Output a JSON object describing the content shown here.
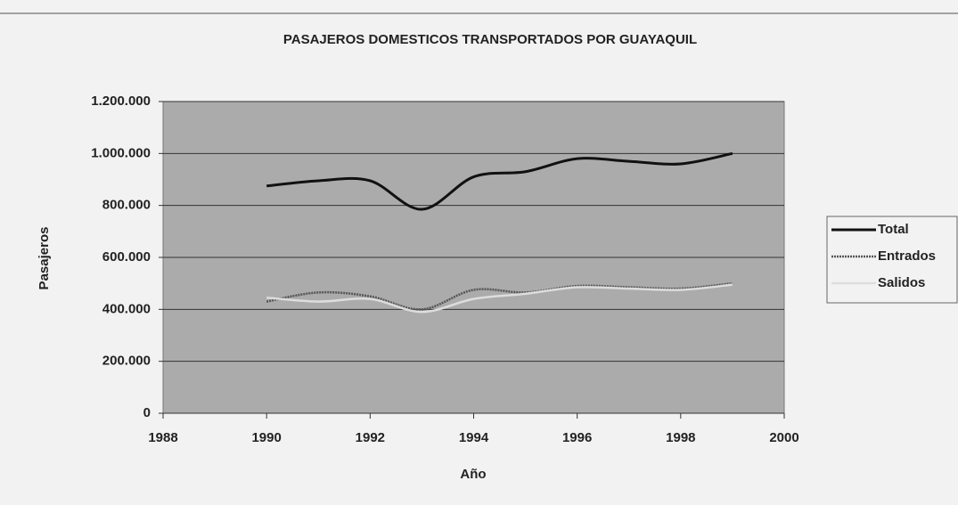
{
  "chart_data": {
    "type": "line",
    "title": "PASAJEROS DOMESTICOS TRANSPORTADOS POR GUAYAQUIL",
    "x_label": "Año",
    "y_label": "Pasajeros",
    "x": [
      1990,
      1991,
      1992,
      1993,
      1994,
      1995,
      1996,
      1997,
      1998,
      1999
    ],
    "series": [
      {
        "name": "Total",
        "color": "#111111",
        "values": [
          875000,
          895000,
          895000,
          785000,
          910000,
          930000,
          980000,
          970000,
          960000,
          1000000
        ]
      },
      {
        "name": "Entrados",
        "color": "#555555",
        "values": [
          430000,
          465000,
          450000,
          400000,
          475000,
          465000,
          490000,
          485000,
          480000,
          500000
        ]
      },
      {
        "name": "Salidos",
        "color": "#dddddd",
        "values": [
          445000,
          430000,
          440000,
          390000,
          440000,
          460000,
          485000,
          480000,
          475000,
          495000
        ]
      }
    ],
    "xlim": [
      1988,
      2000
    ],
    "xticks": [
      1988,
      1990,
      1992,
      1994,
      1996,
      1998,
      2000
    ],
    "ylim": [
      0,
      1200000
    ],
    "yticks": [
      0,
      {
        "value": 200000,
        "label": "200.000"
      },
      {
        "value": 400000,
        "label": "400.000"
      },
      {
        "value": 600000,
        "label": "600.000"
      },
      {
        "value": 800000,
        "label": "800.000"
      },
      {
        "value": 1000000,
        "label": "1.000.000"
      },
      {
        "value": 1200000,
        "label": "1.200.000"
      }
    ],
    "grid": true,
    "legend": "right"
  }
}
